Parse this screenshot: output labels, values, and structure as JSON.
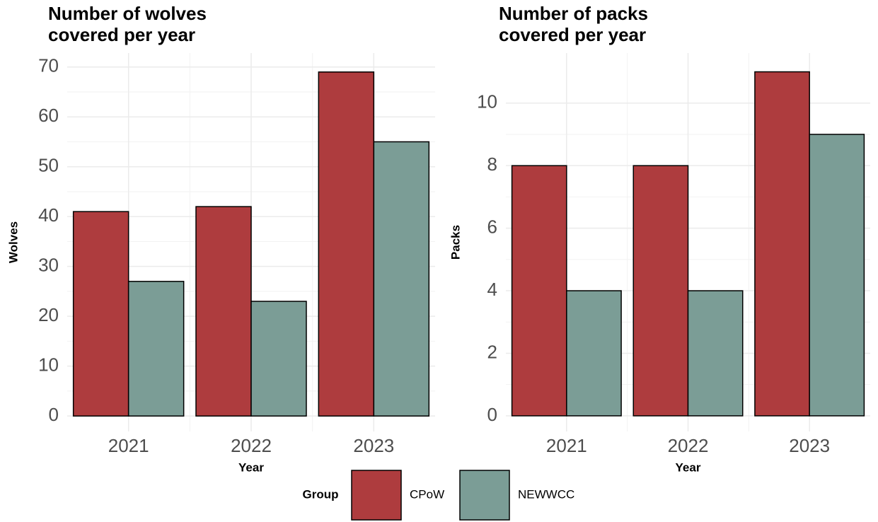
{
  "chart_data": [
    {
      "type": "bar",
      "title": "Number of wolves covered per year",
      "x_label": "Year",
      "y_label": "Wolves",
      "categories": [
        "2021",
        "2022",
        "2023"
      ],
      "series": [
        {
          "name": "CPoW",
          "color": "#ae3c3e",
          "values": [
            41,
            42,
            69
          ]
        },
        {
          "name": "NEWWCC",
          "color": "#7b9d96",
          "values": [
            27,
            23,
            55
          ]
        }
      ],
      "ylim": [
        -3.1,
        72.8
      ],
      "yticks": [
        0,
        10,
        20,
        30,
        40,
        50,
        60,
        70
      ],
      "grid": true
    },
    {
      "type": "bar",
      "title": "Number of packs covered per year",
      "x_label": "Year",
      "y_label": "Packs",
      "categories": [
        "2021",
        "2022",
        "2023"
      ],
      "series": [
        {
          "name": "CPoW",
          "color": "#ae3c3e",
          "values": [
            8,
            8,
            11
          ]
        },
        {
          "name": "NEWWCC",
          "color": "#7b9d96",
          "values": [
            4,
            4,
            9
          ]
        }
      ],
      "ylim": [
        -0.5,
        11.6
      ],
      "yticks": [
        0,
        2,
        4,
        6,
        8,
        10
      ],
      "grid": true
    }
  ],
  "legend": {
    "title": "Group"
  }
}
